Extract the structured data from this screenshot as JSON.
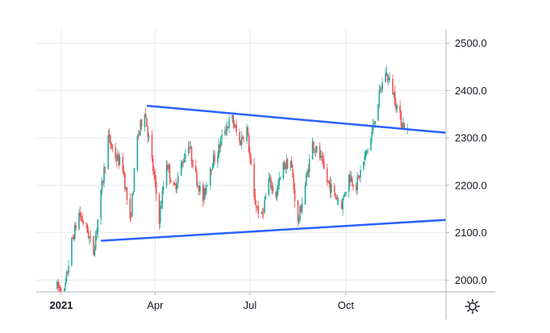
{
  "chart_data": {
    "type": "candlestick",
    "title": "",
    "xlabel": "",
    "ylabel": "",
    "y_ticks": [
      2000,
      2100,
      2200,
      2300,
      2400,
      2500
    ],
    "y_tick_labels": [
      "2000.0",
      "2100.0",
      "2200.0",
      "2300.0",
      "2400.0",
      "2500.0"
    ],
    "ylim": [
      1975,
      2530
    ],
    "x_ticks": [
      {
        "label": "2021",
        "date": "2021-01-01",
        "bold": true
      },
      {
        "label": "Apr",
        "date": "2021-04-01",
        "bold": false
      },
      {
        "label": "Jul",
        "date": "2021-07-01",
        "bold": false
      },
      {
        "label": "Oct",
        "date": "2021-10-01",
        "bold": false
      }
    ],
    "xlim": [
      "2020-12-08",
      "2022-01-05"
    ],
    "grid": true,
    "colors": {
      "up": "#26a69a",
      "down": "#ef5350",
      "trendline": "#2962ff",
      "grid": "#e6e9ee"
    },
    "price_path": [
      [
        "2020-12-28",
        1985
      ],
      [
        "2021-01-04",
        1975
      ],
      [
        "2021-01-11",
        2080
      ],
      [
        "2021-01-18",
        2140
      ],
      [
        "2021-01-25",
        2110
      ],
      [
        "2021-02-01",
        2060
      ],
      [
        "2021-02-08",
        2180
      ],
      [
        "2021-02-15",
        2300
      ],
      [
        "2021-02-22",
        2260
      ],
      [
        "2021-03-01",
        2240
      ],
      [
        "2021-03-08",
        2120
      ],
      [
        "2021-03-15",
        2300
      ],
      [
        "2021-03-22",
        2360
      ],
      [
        "2021-03-29",
        2250
      ],
      [
        "2021-04-05",
        2130
      ],
      [
        "2021-04-12",
        2250
      ],
      [
        "2021-04-19",
        2190
      ],
      [
        "2021-04-26",
        2240
      ],
      [
        "2021-05-03",
        2290
      ],
      [
        "2021-05-10",
        2220
      ],
      [
        "2021-05-17",
        2170
      ],
      [
        "2021-05-24",
        2240
      ],
      [
        "2021-05-31",
        2270
      ],
      [
        "2021-06-07",
        2320
      ],
      [
        "2021-06-14",
        2340
      ],
      [
        "2021-06-21",
        2290
      ],
      [
        "2021-06-28",
        2320
      ],
      [
        "2021-07-05",
        2170
      ],
      [
        "2021-07-12",
        2130
      ],
      [
        "2021-07-19",
        2210
      ],
      [
        "2021-07-26",
        2180
      ],
      [
        "2021-08-02",
        2240
      ],
      [
        "2021-08-09",
        2250
      ],
      [
        "2021-08-16",
        2120
      ],
      [
        "2021-08-23",
        2200
      ],
      [
        "2021-08-30",
        2290
      ],
      [
        "2021-09-06",
        2260
      ],
      [
        "2021-09-13",
        2210
      ],
      [
        "2021-09-20",
        2180
      ],
      [
        "2021-09-27",
        2160
      ],
      [
        "2021-10-04",
        2220
      ],
      [
        "2021-10-11",
        2200
      ],
      [
        "2021-10-18",
        2250
      ],
      [
        "2021-10-25",
        2300
      ],
      [
        "2021-11-01",
        2380
      ],
      [
        "2021-11-08",
        2440
      ],
      [
        "2021-11-15",
        2400
      ],
      [
        "2021-11-22",
        2340
      ],
      [
        "2021-11-29",
        2315
      ]
    ],
    "trendlines": [
      {
        "name": "upper-trendline",
        "start": [
          "2021-03-24",
          2368
        ],
        "end": [
          "2022-01-05",
          2311
        ]
      },
      {
        "name": "lower-trendline",
        "start": [
          "2021-02-08",
          2083
        ],
        "end": [
          "2022-01-05",
          2127
        ]
      }
    ]
  },
  "settings": {
    "icon": "gear-icon"
  }
}
